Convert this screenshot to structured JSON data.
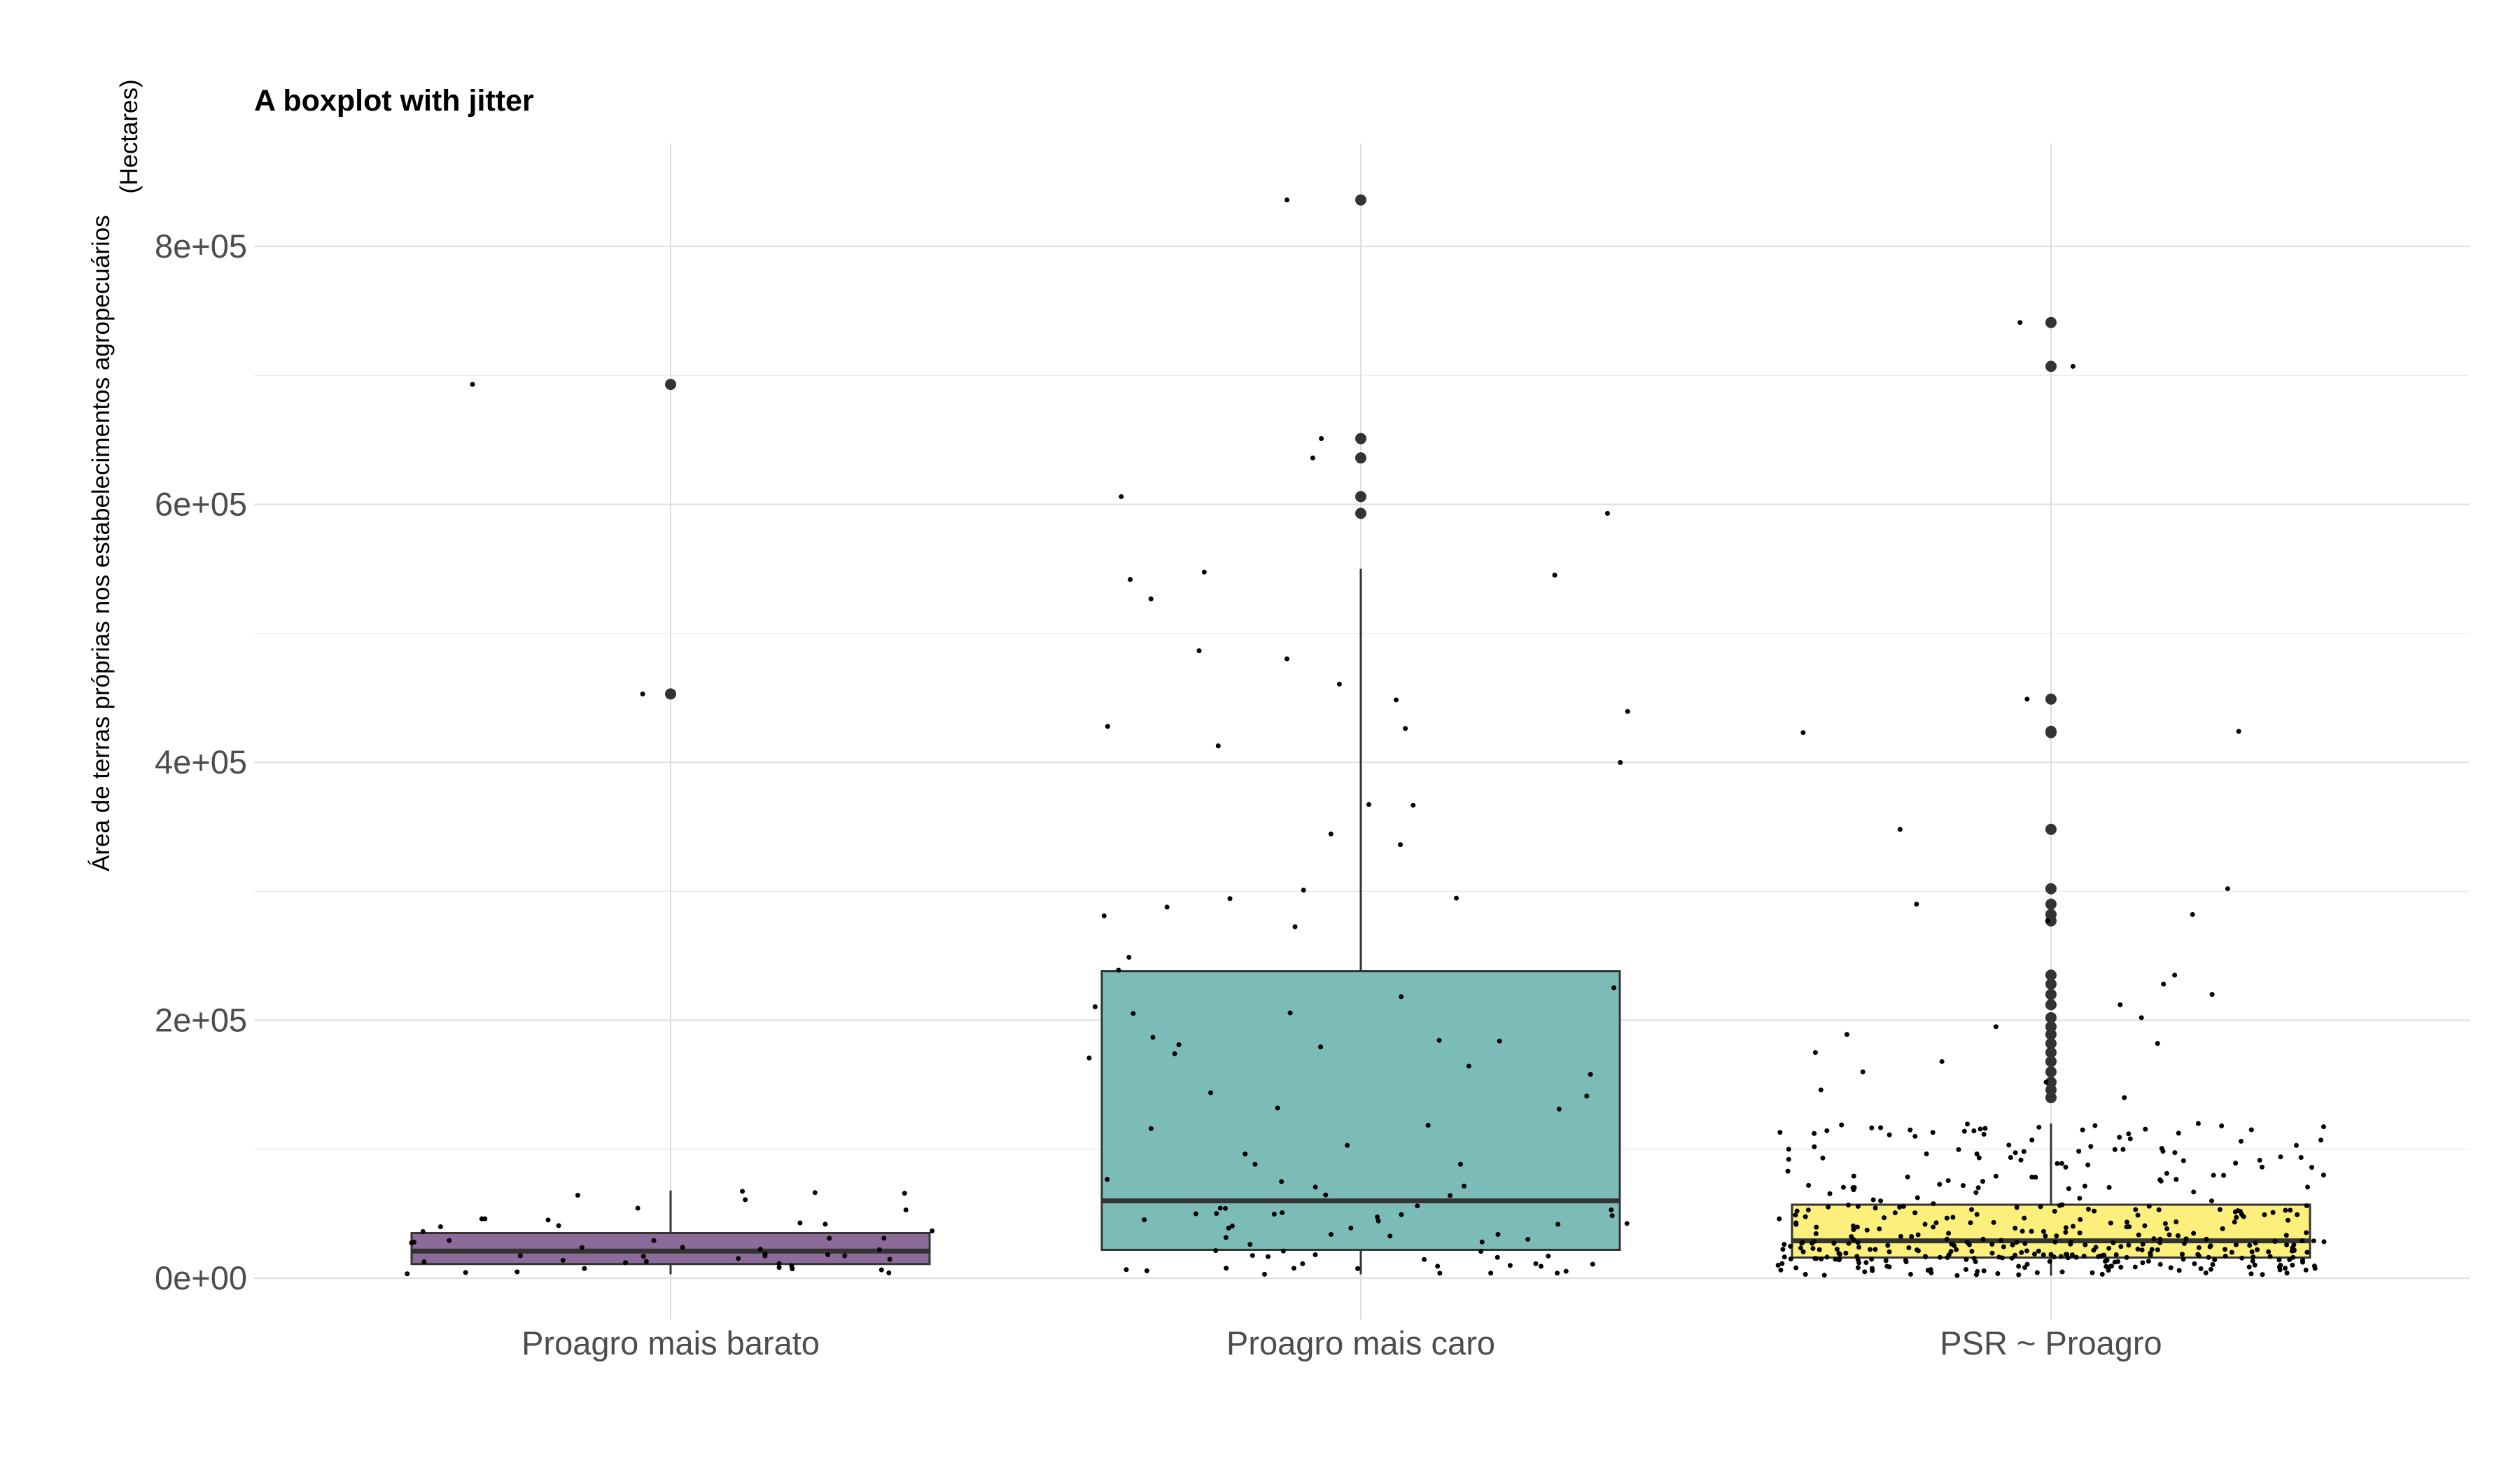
{
  "chart_data": {
    "type": "boxplot",
    "title": "A boxplot with jitter",
    "ylabel_line1": "Área de terras próprias nos estabelecimentos agropecuários",
    "ylabel_line2": "(Hectares)",
    "xlabel": "",
    "categories": [
      "Proagro mais barato",
      "Proagro mais caro",
      "PSR ~ Proagro"
    ],
    "ylim": [
      -20000,
      880000
    ],
    "yticks": [
      0,
      200000,
      400000,
      600000,
      800000
    ],
    "ytick_labels": [
      "0e+00",
      "2e+05",
      "4e+05",
      "6e+05",
      "8e+05"
    ],
    "grid": true,
    "legend": "none",
    "colors": [
      "#8c6a9a",
      "#7bbcb9",
      "#fdef7b"
    ],
    "boxes": [
      {
        "name": "Proagro mais barato",
        "q1": 11000,
        "median": 21000,
        "q3": 35000,
        "whisker_low": 3000,
        "whisker_high": 68000,
        "outliers": [
          693000,
          453000
        ]
      },
      {
        "name": "Proagro mais caro",
        "q1": 22000,
        "median": 60000,
        "q3": 238000,
        "whisker_low": 3000,
        "whisker_high": 550000,
        "outliers": [
          836000,
          651000,
          636000,
          606000,
          593000
        ]
      },
      {
        "name": "PSR ~ Proagro",
        "q1": 16000,
        "median": 29000,
        "q3": 57000,
        "whisker_low": 2000,
        "whisker_high": 120000,
        "outliers": [
          741000,
          707000,
          449000,
          424000,
          423000,
          348000,
          302000,
          290000,
          282000,
          277000,
          235000,
          228000,
          220000,
          212000,
          202000,
          195000,
          189000,
          182000,
          175000,
          168000,
          160000,
          152000,
          146000,
          140000
        ]
      }
    ],
    "jitter_counts": [
      50,
      110,
      430
    ]
  }
}
